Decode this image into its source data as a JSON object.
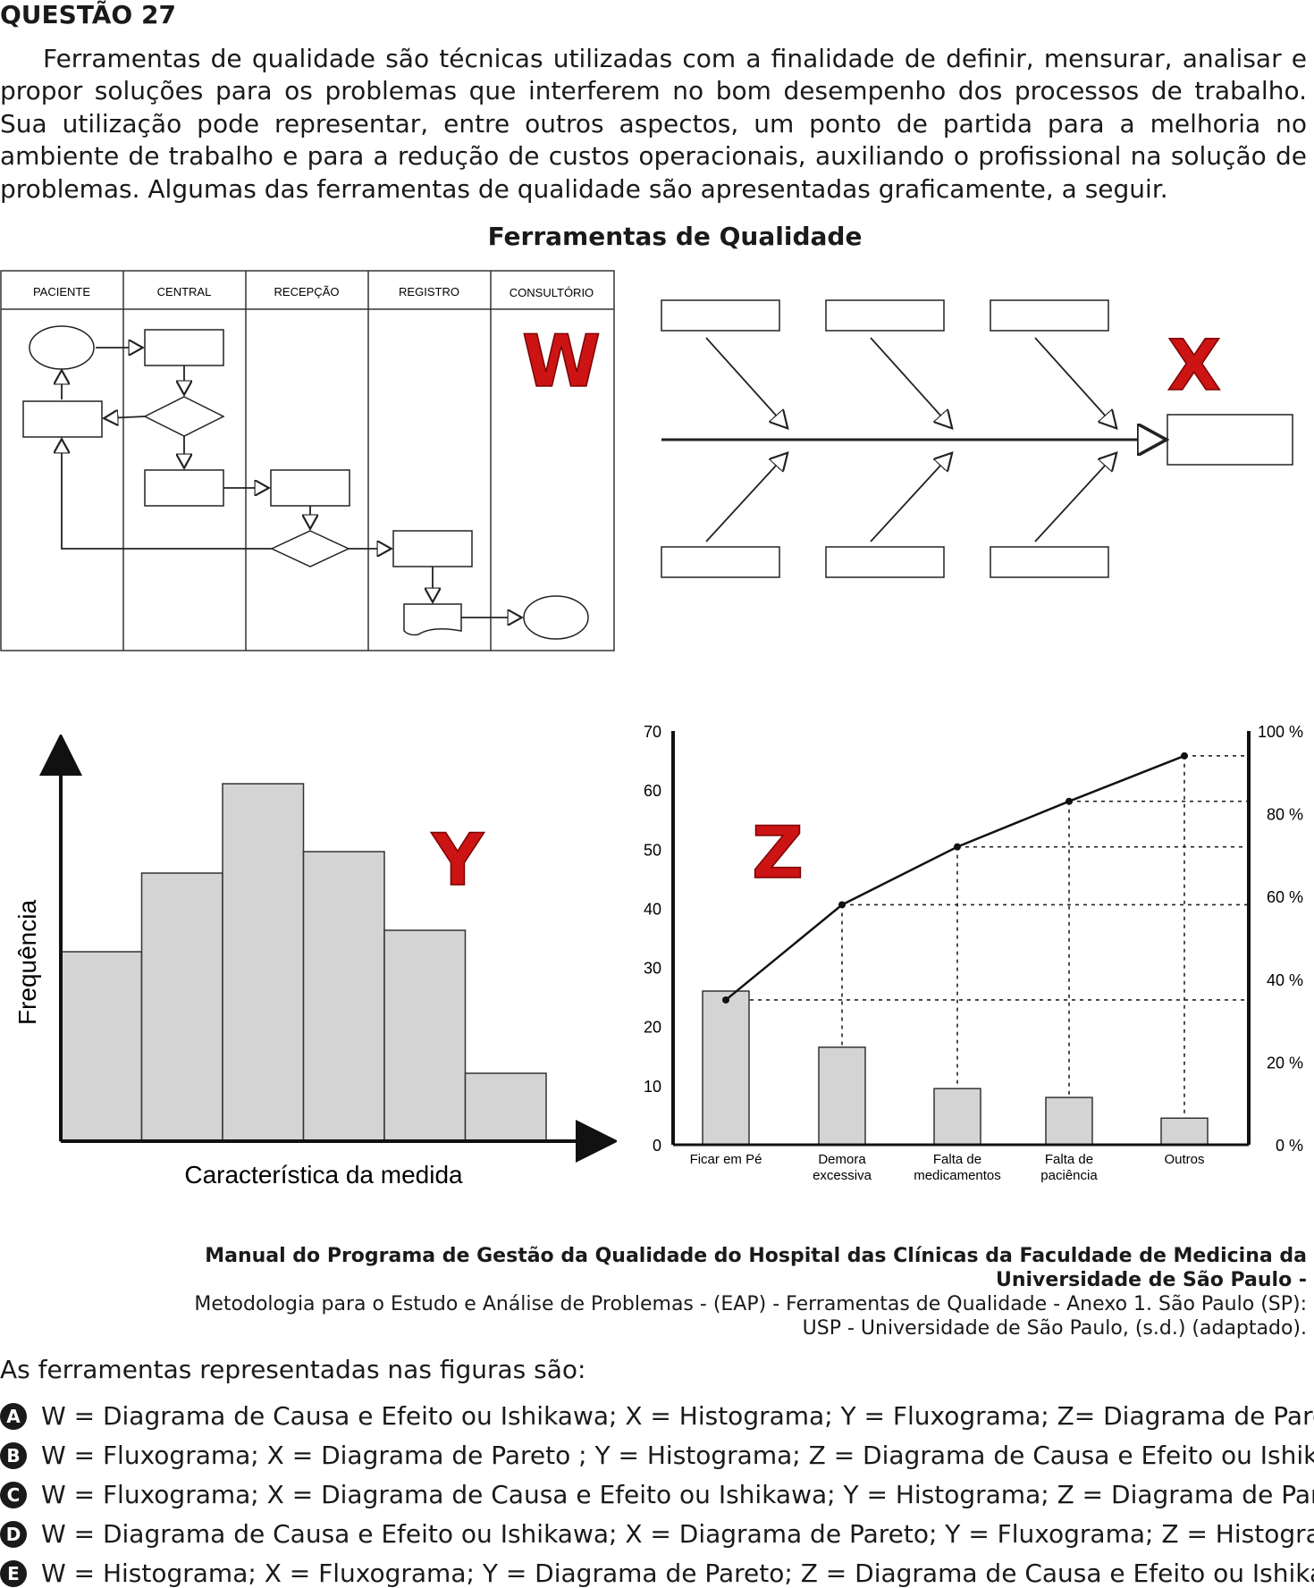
{
  "question": {
    "title": "QUESTÃO 27",
    "intro": "Ferramentas de qualidade são técnicas utilizadas com a finalidade de definir, mensurar, analisar e propor soluções para os problemas que interferem no bom desempenho dos processos de trabalho. Sua utilização pode representar, entre outros aspectos, um ponto de partida para a melhoria no ambiente de trabalho e para a redução de custos operacionais, auxiliando o profissional na solução de problemas. Algumas das ferramentas de qualidade são apresentadas graficamente, a seguir.",
    "figure_title": "Ferramentas de Qualidade"
  },
  "flowchart": {
    "letter": "W",
    "lanes": [
      "PACIENTE",
      "CENTRAL",
      "RECEPÇÃO",
      "REGISTRO",
      "CONSULTÓRIO"
    ]
  },
  "ishikawa": {
    "letter": "X"
  },
  "histogram": {
    "letter": "Y",
    "ylabel": "Frequência",
    "xlabel": "Característica da medida"
  },
  "pareto": {
    "letter": "Z",
    "left_ticks": [
      "70",
      "60",
      "50",
      "40",
      "30",
      "20",
      "10",
      "0"
    ],
    "right_ticks": [
      "100 %",
      "80 %",
      "60 %",
      "40 %",
      "20 %",
      "0 %"
    ],
    "categories": [
      [
        "Ficar em Pé"
      ],
      [
        "Demora",
        "excessiva"
      ],
      [
        "Falta de",
        "medicamentos"
      ],
      [
        "Falta de",
        "paciência"
      ],
      [
        "Outros"
      ]
    ]
  },
  "chart_data": [
    {
      "type": "bar",
      "chart": "histogram",
      "title": "",
      "xlabel": "Característica da medida",
      "ylabel": "Frequência",
      "values": [
        5.3,
        7.5,
        10.0,
        8.1,
        5.9,
        1.9
      ],
      "color": "#d4d4d4"
    },
    {
      "type": "bar",
      "chart": "pareto",
      "title": "",
      "categories": [
        "Ficar em Pé",
        "Demora excessiva",
        "Falta de medicamentos",
        "Falta de paciência",
        "Outros"
      ],
      "values": [
        26,
        16.5,
        9.5,
        8,
        4.5
      ],
      "cumulative_percent": [
        35,
        58,
        72,
        83,
        94
      ],
      "ylim": [
        0,
        70
      ],
      "y2lim": [
        0,
        100
      ],
      "color": "#d4d4d4"
    }
  ],
  "source": {
    "bold": "Manual do Programa de Gestão da Qualidade do Hospital das Clínicas da Faculdade de Medicina da Universidade de São Paulo -",
    "line2": "Metodologia para o Estudo e Análise de Problemas - (EAP) - Ferramentas de Qualidade - Anexo 1. São Paulo (SP):",
    "line3": "USP - Universidade de São Paulo, (s.d.) (adaptado)."
  },
  "prompt": "As ferramentas representadas nas figuras são:",
  "options": [
    {
      "letter": "A",
      "text": "W = Diagrama de Causa e Efeito ou Ishikawa; X = Histograma; Y = Fluxograma; Z= Diagrama de Pareto."
    },
    {
      "letter": "B",
      "text": "W = Fluxograma; X = Diagrama de Pareto ; Y = Histograma; Z = Diagrama de Causa e Efeito ou Ishikawa."
    },
    {
      "letter": "C",
      "text": "W = Fluxograma; X = Diagrama de Causa e Efeito ou Ishikawa; Y = Histograma; Z = Diagrama de Pareto."
    },
    {
      "letter": "D",
      "text": "W = Diagrama de Causa e Efeito ou Ishikawa; X = Diagrama de Pareto; Y = Fluxograma; Z = Histograma."
    },
    {
      "letter": "E",
      "text": "W = Histograma; X = Fluxograma; Y = Diagrama de Pareto; Z = Diagrama de Causa e Efeito ou Ishikawa."
    }
  ]
}
